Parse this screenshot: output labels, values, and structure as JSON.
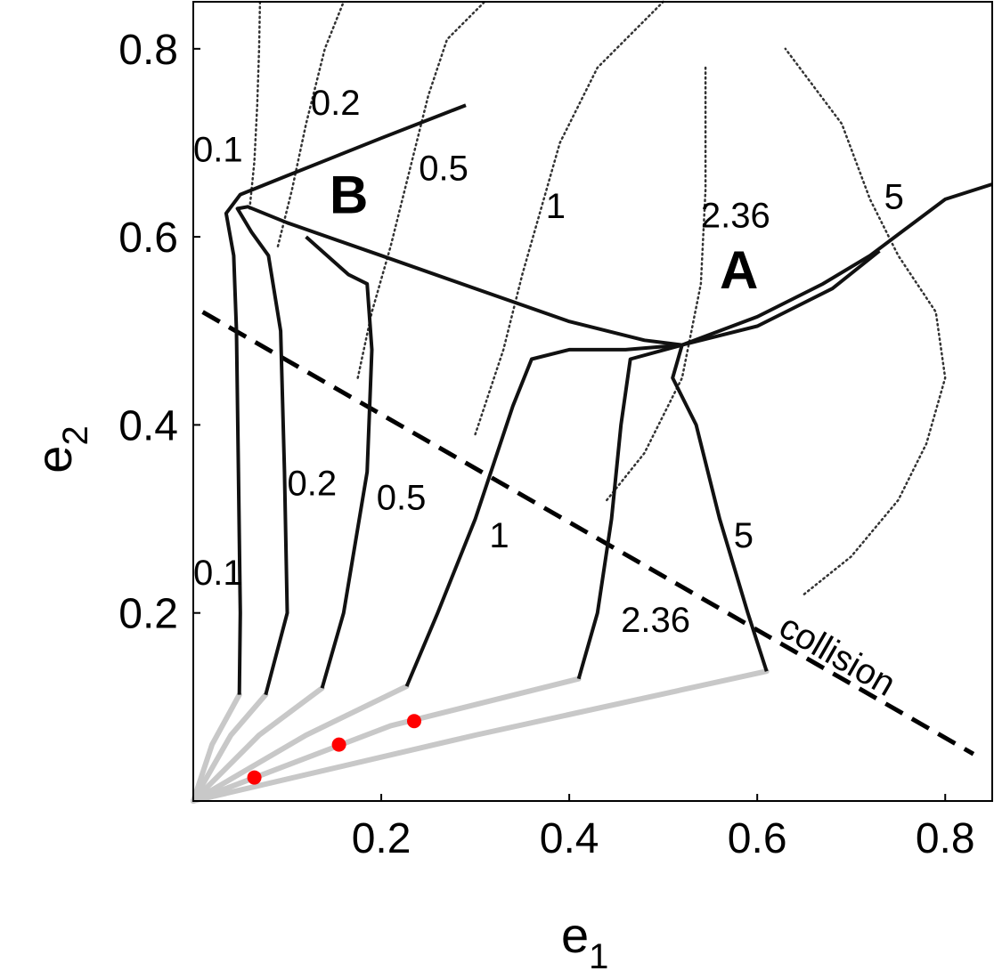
{
  "chart_data": {
    "type": "line",
    "title": "",
    "xlabel": "e",
    "xlabel_sub": "1",
    "ylabel": "e",
    "ylabel_sub": "2",
    "xlim": [
      0,
      0.85
    ],
    "ylim": [
      0,
      0.85
    ],
    "x_ticks": [
      {
        "v": 0.2,
        "label": "0.2"
      },
      {
        "v": 0.4,
        "label": "0.4"
      },
      {
        "v": 0.6,
        "label": "0.6"
      },
      {
        "v": 0.8,
        "label": "0.8"
      }
    ],
    "y_ticks": [
      {
        "v": 0.2,
        "label": "0.2"
      },
      {
        "v": 0.4,
        "label": "0.4"
      },
      {
        "v": 0.6,
        "label": "0.6"
      },
      {
        "v": 0.8,
        "label": "0.8"
      }
    ],
    "grid": false,
    "colors": {
      "evolution": "#111111",
      "initial": "#c8c8c8",
      "marker": "#ff0000",
      "dotted": "#333333"
    },
    "evolution_curves": [
      {
        "label": "0.1",
        "points": [
          [
            0.049,
            0.113
          ],
          [
            0.05,
            0.2
          ],
          [
            0.048,
            0.35
          ],
          [
            0.046,
            0.5
          ],
          [
            0.043,
            0.58
          ],
          [
            0.035,
            0.625
          ],
          [
            0.05,
            0.645
          ],
          [
            0.075,
            0.655
          ],
          [
            0.1,
            0.665
          ],
          [
            0.15,
            0.685
          ],
          [
            0.2,
            0.705
          ],
          [
            0.29,
            0.74
          ]
        ]
      },
      {
        "label": "0.2",
        "points": [
          [
            0.077,
            0.113
          ],
          [
            0.1,
            0.2
          ],
          [
            0.097,
            0.35
          ],
          [
            0.093,
            0.5
          ],
          [
            0.08,
            0.58
          ],
          [
            0.062,
            0.605
          ],
          [
            0.047,
            0.63
          ],
          [
            0.058,
            0.632
          ],
          [
            0.1,
            0.615
          ],
          [
            0.2,
            0.58
          ],
          [
            0.3,
            0.545
          ],
          [
            0.4,
            0.51
          ],
          [
            0.48,
            0.49
          ],
          [
            0.52,
            0.485
          ]
        ]
      },
      {
        "label": "0.5",
        "points": [
          [
            0.137,
            0.12
          ],
          [
            0.16,
            0.2
          ],
          [
            0.185,
            0.35
          ],
          [
            0.19,
            0.48
          ],
          [
            0.185,
            0.55
          ],
          [
            0.165,
            0.56
          ],
          [
            0.12,
            0.6
          ]
        ]
      },
      {
        "label": "1",
        "points": [
          [
            0.227,
            0.122
          ],
          [
            0.26,
            0.2
          ],
          [
            0.3,
            0.3
          ],
          [
            0.34,
            0.42
          ],
          [
            0.36,
            0.47
          ],
          [
            0.4,
            0.48
          ],
          [
            0.46,
            0.48
          ],
          [
            0.52,
            0.485
          ]
        ]
      },
      {
        "label": "2.36",
        "points": [
          [
            0.41,
            0.13
          ],
          [
            0.43,
            0.2
          ],
          [
            0.445,
            0.3
          ],
          [
            0.455,
            0.4
          ],
          [
            0.465,
            0.47
          ],
          [
            0.52,
            0.485
          ]
        ]
      },
      {
        "label": "5",
        "points": [
          [
            0.61,
            0.138
          ],
          [
            0.59,
            0.2
          ],
          [
            0.56,
            0.3
          ],
          [
            0.535,
            0.4
          ],
          [
            0.51,
            0.45
          ],
          [
            0.52,
            0.485
          ]
        ]
      }
    ],
    "region_a_boundary": [
      {
        "points": [
          [
            0.52,
            0.485
          ],
          [
            0.6,
            0.515
          ],
          [
            0.67,
            0.55
          ],
          [
            0.72,
            0.58
          ],
          [
            0.8,
            0.64
          ],
          [
            0.85,
            0.656
          ]
        ]
      },
      {
        "points": [
          [
            0.52,
            0.485
          ],
          [
            0.6,
            0.505
          ],
          [
            0.68,
            0.545
          ],
          [
            0.73,
            0.585
          ]
        ]
      }
    ],
    "initial_paths": [
      {
        "points": [
          [
            0.0,
            0.0
          ],
          [
            0.02,
            0.06
          ],
          [
            0.049,
            0.113
          ]
        ]
      },
      {
        "points": [
          [
            0.0,
            0.0
          ],
          [
            0.04,
            0.07
          ],
          [
            0.077,
            0.113
          ]
        ]
      },
      {
        "points": [
          [
            0.0,
            0.0
          ],
          [
            0.07,
            0.07
          ],
          [
            0.137,
            0.12
          ]
        ]
      },
      {
        "points": [
          [
            0.0,
            0.0
          ],
          [
            0.12,
            0.07
          ],
          [
            0.227,
            0.122
          ]
        ]
      },
      {
        "points": [
          [
            0.0,
            0.0
          ],
          [
            0.21,
            0.08
          ],
          [
            0.41,
            0.13
          ]
        ]
      },
      {
        "points": [
          [
            0.0,
            0.0
          ],
          [
            0.3,
            0.07
          ],
          [
            0.61,
            0.138
          ]
        ]
      }
    ],
    "initial_markers": [
      [
        0.065,
        0.025
      ],
      [
        0.155,
        0.06
      ],
      [
        0.235,
        0.085
      ]
    ],
    "collision_line": {
      "label": "collision",
      "points": [
        [
          0.01,
          0.52
        ],
        [
          0.83,
          0.05
        ]
      ]
    },
    "contours": [
      {
        "label": "0.1",
        "points": [
          [
            0.06,
            0.63
          ],
          [
            0.065,
            0.68
          ],
          [
            0.068,
            0.74
          ],
          [
            0.07,
            0.8
          ],
          [
            0.071,
            0.85
          ]
        ]
      },
      {
        "label": "0.2",
        "points": [
          [
            0.09,
            0.59
          ],
          [
            0.105,
            0.65
          ],
          [
            0.12,
            0.72
          ],
          [
            0.14,
            0.8
          ],
          [
            0.16,
            0.85
          ]
        ]
      },
      {
        "label": "0.5",
        "points": [
          [
            0.175,
            0.45
          ],
          [
            0.19,
            0.52
          ],
          [
            0.21,
            0.59
          ],
          [
            0.23,
            0.67
          ],
          [
            0.25,
            0.75
          ],
          [
            0.27,
            0.81
          ],
          [
            0.31,
            0.85
          ]
        ]
      },
      {
        "label": "1",
        "points": [
          [
            0.3,
            0.39
          ],
          [
            0.33,
            0.48
          ],
          [
            0.35,
            0.56
          ],
          [
            0.37,
            0.63
          ],
          [
            0.39,
            0.7
          ],
          [
            0.43,
            0.78
          ],
          [
            0.5,
            0.85
          ]
        ]
      },
      {
        "label": "2.36",
        "points": [
          [
            0.44,
            0.32
          ],
          [
            0.48,
            0.37
          ],
          [
            0.52,
            0.45
          ],
          [
            0.54,
            0.55
          ],
          [
            0.545,
            0.65
          ],
          [
            0.545,
            0.72
          ],
          [
            0.545,
            0.78
          ]
        ]
      },
      {
        "label": "5",
        "points": [
          [
            0.65,
            0.22
          ],
          [
            0.7,
            0.26
          ],
          [
            0.75,
            0.32
          ],
          [
            0.78,
            0.38
          ],
          [
            0.8,
            0.45
          ],
          [
            0.79,
            0.52
          ],
          [
            0.75,
            0.58
          ],
          [
            0.72,
            0.64
          ],
          [
            0.69,
            0.72
          ],
          [
            0.63,
            0.8
          ]
        ]
      }
    ],
    "curve_labels": [
      {
        "text": "0.1",
        "x": 0.0,
        "y": 0.68
      },
      {
        "text": "0.2",
        "x": 0.125,
        "y": 0.73
      },
      {
        "text": "0.5",
        "x": 0.24,
        "y": 0.66
      },
      {
        "text": "1",
        "x": 0.375,
        "y": 0.62
      },
      {
        "text": "2.36",
        "x": 0.54,
        "y": 0.61
      },
      {
        "text": "5",
        "x": 0.735,
        "y": 0.63
      },
      {
        "text": "0.1",
        "x": 0.0,
        "y": 0.23
      },
      {
        "text": "0.2",
        "x": 0.1,
        "y": 0.325
      },
      {
        "text": "0.5",
        "x": 0.195,
        "y": 0.31
      },
      {
        "text": "1",
        "x": 0.315,
        "y": 0.27
      },
      {
        "text": "2.36",
        "x": 0.455,
        "y": 0.18
      },
      {
        "text": "5",
        "x": 0.575,
        "y": 0.27
      }
    ],
    "region_labels": [
      {
        "text": "A",
        "x": 0.56,
        "y": 0.545
      },
      {
        "text": "B",
        "x": 0.145,
        "y": 0.625
      }
    ]
  }
}
